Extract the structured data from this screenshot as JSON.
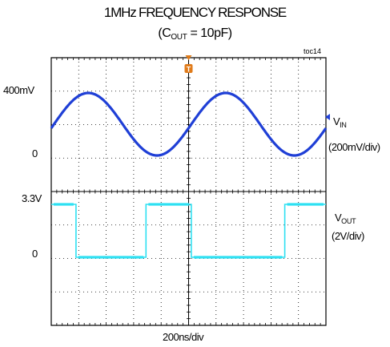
{
  "chart_data": {
    "type": "line",
    "title": {
      "prefix": "1MHz FREQUENCY RESPONSE",
      "line2_pre": "(C",
      "line2_sub": "OUT",
      "line2_post": " = 10pF)"
    },
    "tag": "toc14",
    "trigger_marker": "T",
    "xlabel": "200ns/div",
    "x_unit": "ns",
    "xlim": [
      0,
      2000
    ],
    "series": [
      {
        "name": "VIN",
        "label_main": "V",
        "label_sub": "IN",
        "scale": "(200mV/div)",
        "color": "#1f3fd6",
        "shape": "sine",
        "frequency_mhz": 1,
        "min_mv": 0,
        "max_mv": 400,
        "first_peak_ns": 270,
        "y_tick_labels": [
          {
            "text": "400mV",
            "value": 400
          },
          {
            "text": "0",
            "value": 0
          }
        ]
      },
      {
        "name": "VOUT",
        "label_main": "V",
        "label_sub": "OUT",
        "scale": "(2V/div)",
        "color": "#2ee0f2",
        "shape": "square",
        "low_v": 0,
        "high_v": 3.3,
        "high_start_ns": [
          0,
          690,
          1700
        ],
        "high_end_ns": [
          180,
          1020,
          2000
        ],
        "y_tick_labels": [
          {
            "text": "3.3V",
            "value": 3.3
          },
          {
            "text": "0",
            "value": 0
          }
        ]
      }
    ],
    "grid": true
  },
  "colors": {
    "grid": "#000000",
    "trigger": "#e07b1a"
  }
}
